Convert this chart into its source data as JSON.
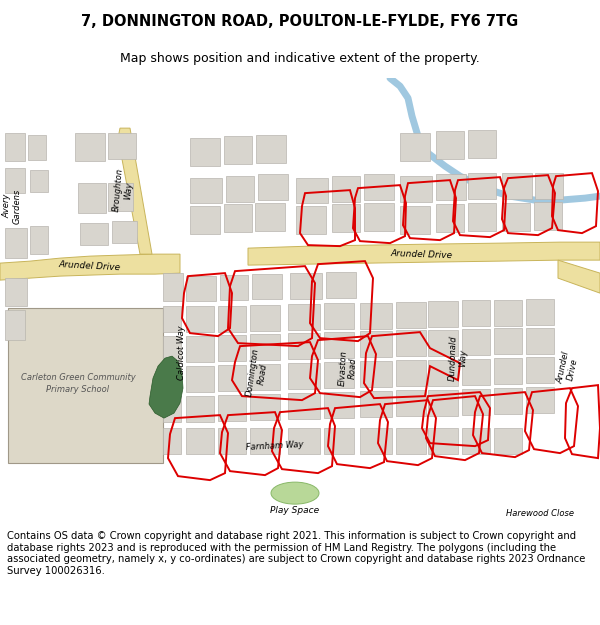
{
  "title_line1": "7, DONNINGTON ROAD, POULTON-LE-FYLDE, FY6 7TG",
  "title_line2": "Map shows position and indicative extent of the property.",
  "footer_text": "Contains OS data © Crown copyright and database right 2021. This information is subject to Crown copyright and database rights 2023 and is reproduced with the permission of HM Land Registry. The polygons (including the associated geometry, namely x, y co-ordinates) are subject to Crown copyright and database rights 2023 Ordnance Survey 100026316.",
  "map_bg": "#f2f0ec",
  "road_yellow": "#ede0a0",
  "road_edge": "#c8b45a",
  "building_fill": "#d8d5ce",
  "building_outline": "#b8b5ae",
  "red_color": "#dd0000",
  "green_fill": "#4a7a4a",
  "river_color": "#a0c8e0",
  "school_fill": "#ddd8c8",
  "play_fill": "#b8d898",
  "white": "#ffffff",
  "title_fontsize": 10.5,
  "subtitle_fontsize": 9,
  "footer_fontsize": 7.2,
  "label_fontsize": 6.5
}
